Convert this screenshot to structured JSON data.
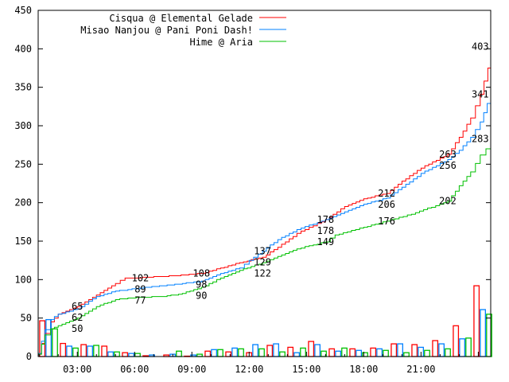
{
  "chart_data": {
    "type": "line",
    "title": "",
    "xlabel": "",
    "ylabel": "",
    "xlim": [
      0.95,
      24.65
    ],
    "ylim": [
      0,
      450
    ],
    "yticks": [
      0,
      50,
      100,
      150,
      200,
      250,
      300,
      350,
      400,
      450
    ],
    "xticks": [
      {
        "value": 3,
        "label": "03:00"
      },
      {
        "value": 6,
        "label": "06:00"
      },
      {
        "value": 9,
        "label": "09:00"
      },
      {
        "value": 12,
        "label": "12:00"
      },
      {
        "value": 15,
        "label": "15:00"
      },
      {
        "value": 18,
        "label": "18:00"
      },
      {
        "value": 21,
        "label": "21:00"
      }
    ],
    "legend_placement": "top-right",
    "series": [
      {
        "name": "Cisqua @ Elemental Gelade",
        "color": "#ff0000",
        "points": [
          [
            0.95,
            3
          ],
          [
            1.3,
            30
          ],
          [
            1.6,
            45
          ],
          [
            2,
            55
          ],
          [
            3,
            65
          ],
          [
            4,
            80
          ],
          [
            5,
            95
          ],
          [
            5.5,
            102
          ],
          [
            6,
            102
          ],
          [
            8,
            105
          ],
          [
            9.5,
            108
          ],
          [
            10.5,
            115
          ],
          [
            11.5,
            122
          ],
          [
            12.7,
            129
          ],
          [
            13.5,
            142
          ],
          [
            14.5,
            160
          ],
          [
            16,
            178
          ],
          [
            17,
            195
          ],
          [
            18,
            205
          ],
          [
            19.2,
            212
          ],
          [
            20,
            228
          ],
          [
            21,
            245
          ],
          [
            22.4,
            263
          ],
          [
            23,
            285
          ],
          [
            23.6,
            310
          ],
          [
            24.1,
            341
          ],
          [
            24.5,
            375
          ],
          [
            24.65,
            403
          ]
        ],
        "labels": [
          [
            3,
            65
          ],
          [
            6.3,
            102
          ],
          [
            9.5,
            108
          ],
          [
            12.7,
            129
          ],
          [
            16,
            178
          ],
          [
            19.2,
            212
          ],
          [
            22.4,
            263
          ],
          [
            24.1,
            403
          ]
        ],
        "bars": [
          46.5,
          17,
          15.5,
          13.5,
          5,
          1,
          2,
          0.5,
          7,
          6,
          5,
          14.5,
          12,
          19.6,
          10,
          10,
          11,
          16.5,
          15.5,
          20.7,
          40,
          92
        ]
      },
      {
        "name": "Misao Nanjou @ Pani Poni Dash!",
        "color": "#0080ff",
        "points": [
          [
            0.95,
            4
          ],
          [
            1.3,
            35
          ],
          [
            1.6,
            48
          ],
          [
            2,
            55
          ],
          [
            3,
            62
          ],
          [
            4,
            78
          ],
          [
            5,
            85
          ],
          [
            6.3,
            89
          ],
          [
            7.5,
            92
          ],
          [
            8.5,
            95
          ],
          [
            9.5,
            98
          ],
          [
            10.5,
            108
          ],
          [
            11.5,
            115
          ],
          [
            12,
            125
          ],
          [
            12.7,
            137
          ],
          [
            13.5,
            152
          ],
          [
            14.5,
            165
          ],
          [
            16,
            178
          ],
          [
            17,
            188
          ],
          [
            18,
            198
          ],
          [
            19.2,
            206
          ],
          [
            20,
            220
          ],
          [
            21,
            238
          ],
          [
            22.4,
            256
          ],
          [
            23,
            268
          ],
          [
            23.6,
            285
          ],
          [
            24.1,
            305
          ],
          [
            24.65,
            341
          ]
        ],
        "labels": [
          [
            3,
            62
          ],
          [
            6.3,
            89
          ],
          [
            9.5,
            98
          ],
          [
            12.7,
            137
          ],
          [
            16,
            178
          ],
          [
            19.2,
            206
          ],
          [
            22.4,
            256
          ],
          [
            24.1,
            341
          ]
        ],
        "bars": [
          48,
          13.5,
          13.5,
          6,
          4,
          2,
          3,
          2,
          9,
          11,
          15.5,
          16.5,
          5,
          15.5,
          7,
          8,
          10,
          16.5,
          12,
          16.5,
          23,
          61
        ]
      },
      {
        "name": "Hime @ Aria",
        "color": "#00c000",
        "points": [
          [
            0.95,
            3
          ],
          [
            1.3,
            28
          ],
          [
            1.6,
            36
          ],
          [
            2,
            40
          ],
          [
            3,
            50
          ],
          [
            4,
            65
          ],
          [
            5,
            74
          ],
          [
            6.3,
            77
          ],
          [
            7.5,
            78
          ],
          [
            8.5,
            82
          ],
          [
            9.5,
            90
          ],
          [
            10.5,
            102
          ],
          [
            11.5,
            112
          ],
          [
            12.7,
            122
          ],
          [
            13.5,
            130
          ],
          [
            14.5,
            140
          ],
          [
            16,
            149
          ],
          [
            16.5,
            158
          ],
          [
            18,
            168
          ],
          [
            19.2,
            176
          ],
          [
            20.5,
            185
          ],
          [
            22.4,
            202
          ],
          [
            23,
            222
          ],
          [
            23.6,
            240
          ],
          [
            24.1,
            262
          ],
          [
            24.4,
            270
          ],
          [
            24.65,
            283
          ]
        ],
        "labels": [
          [
            3,
            50
          ],
          [
            6.3,
            77
          ],
          [
            9.5,
            90
          ],
          [
            12.7,
            122
          ],
          [
            16,
            149
          ],
          [
            19.2,
            176
          ],
          [
            22.4,
            202
          ],
          [
            24.1,
            283
          ]
        ],
        "bars": [
          36,
          11,
          14.5,
          6,
          4,
          0,
          7,
          3,
          9,
          10,
          10,
          6,
          11,
          7,
          11,
          5,
          8,
          5,
          8,
          10,
          24,
          55
        ]
      }
    ]
  }
}
